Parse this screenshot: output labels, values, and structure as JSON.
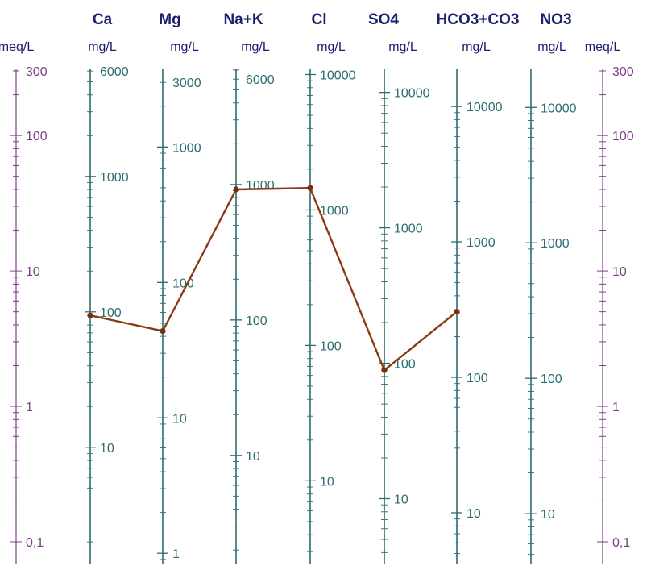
{
  "chart_data": {
    "type": "line",
    "title": "",
    "colors": {
      "header": "#1b1f6e",
      "unit": "#1b1f6e",
      "meq_axis": "#7b3f86",
      "mg_axis": "#2b6e70",
      "line": "#8b3a16",
      "marker": "#7a2e10"
    },
    "meq_axes": {
      "unit": "meq/L",
      "scale": "log",
      "range": [
        0.1,
        300
      ],
      "tick_labels": [
        {
          "label": "300",
          "value": 300
        },
        {
          "label": "100",
          "value": 100
        },
        {
          "label": "10",
          "value": 10
        },
        {
          "label": "1",
          "value": 1
        },
        {
          "label": "0,1",
          "value": 0.1
        }
      ]
    },
    "axes": [
      {
        "name": "Ca",
        "unit": "mg/L",
        "equiv_mg_per_meq": 20.04,
        "labels": [
          6000,
          1000,
          100,
          10
        ]
      },
      {
        "name": "Mg",
        "unit": "mg/L",
        "equiv_mg_per_meq": 12.15,
        "labels": [
          3000,
          1000,
          100,
          10,
          1
        ]
      },
      {
        "name": "Na+K",
        "unit": "mg/L",
        "equiv_mg_per_meq": 23.0,
        "labels": [
          6000,
          1000,
          100,
          10
        ]
      },
      {
        "name": "Cl",
        "unit": "mg/L",
        "equiv_mg_per_meq": 35.45,
        "labels": [
          10000,
          1000,
          100,
          10
        ]
      },
      {
        "name": "SO4",
        "unit": "mg/L",
        "equiv_mg_per_meq": 48.03,
        "labels": [
          10000,
          1000,
          100,
          10
        ]
      },
      {
        "name": "HCO3+CO3",
        "unit": "mg/L",
        "equiv_mg_per_meq": 61.02,
        "labels": [
          10000,
          1000,
          100,
          10
        ]
      },
      {
        "name": "NO3",
        "unit": "mg/L",
        "equiv_mg_per_meq": 62.0,
        "labels": [
          10000,
          1000,
          100,
          10
        ]
      }
    ],
    "series": [
      {
        "x": [
          "Ca",
          "Mg",
          "Na+K",
          "Cl",
          "SO4",
          "HCO3+CO3"
        ],
        "meq": [
          4.7,
          3.6,
          40,
          41,
          1.85,
          5.0
        ]
      }
    ]
  }
}
